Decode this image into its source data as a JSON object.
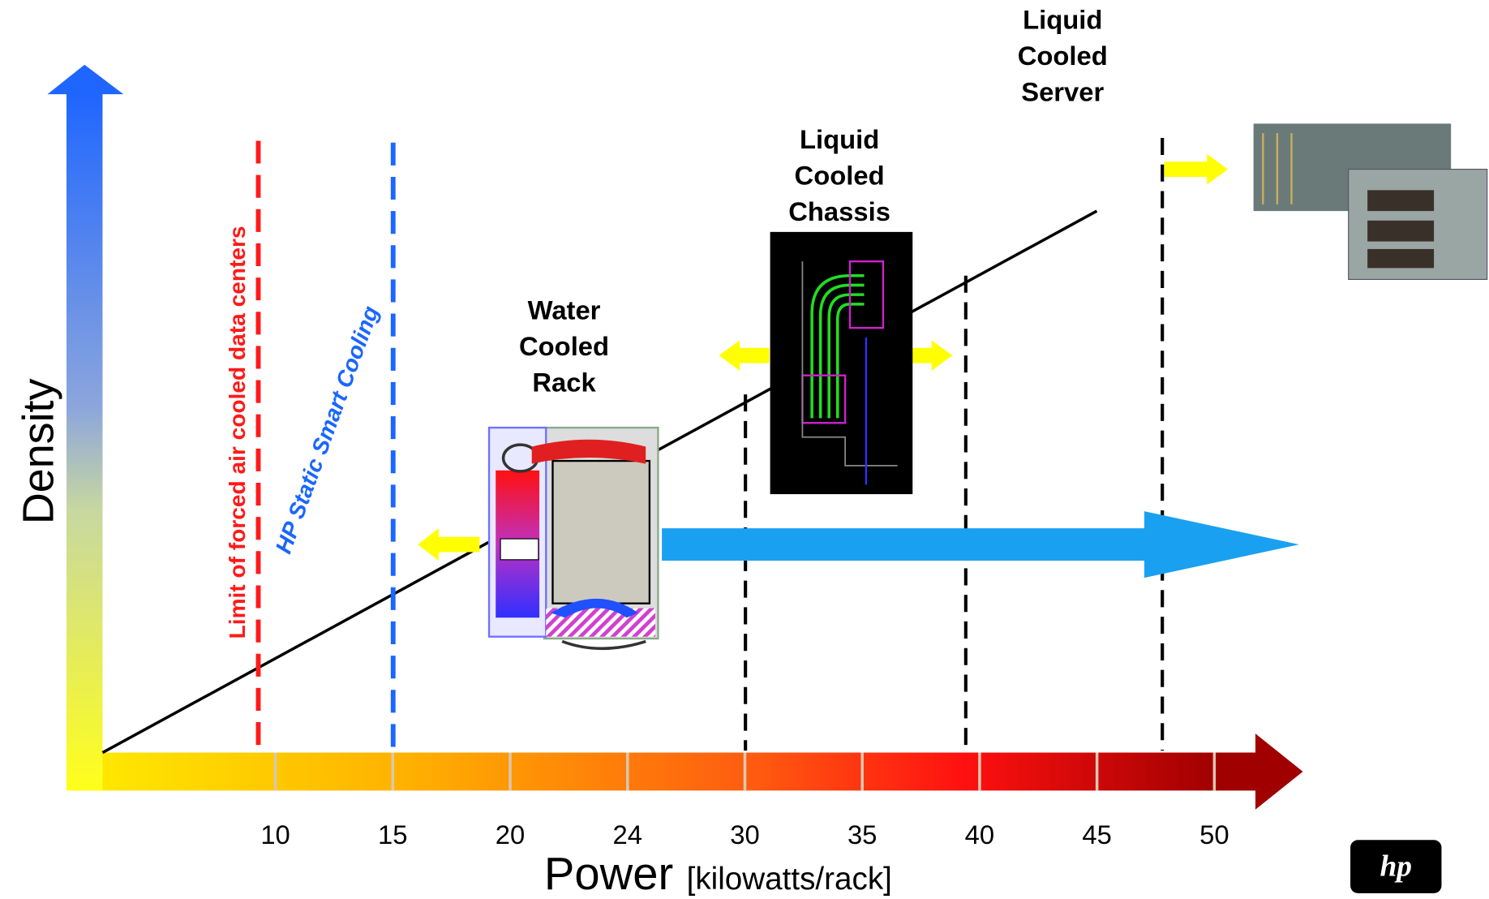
{
  "y_axis": {
    "label": "Density"
  },
  "x_axis": {
    "label": "Power",
    "unit": "[kilowatts/rack]",
    "ticks": [
      "10",
      "15",
      "20",
      "24",
      "30",
      "35",
      "40",
      "45",
      "50"
    ]
  },
  "limit_lines": [
    {
      "label": "Limit of forced air cooled data centers"
    },
    {
      "label": "HP Static Smart Cooling"
    }
  ],
  "stages": [
    {
      "label": [
        "Water",
        "Cooled",
        "Rack"
      ]
    },
    {
      "label": [
        "Liquid",
        "Cooled",
        "Chassis"
      ]
    },
    {
      "label": [
        "Liquid",
        "Cooled",
        "Server"
      ]
    }
  ],
  "logo": "hp"
}
